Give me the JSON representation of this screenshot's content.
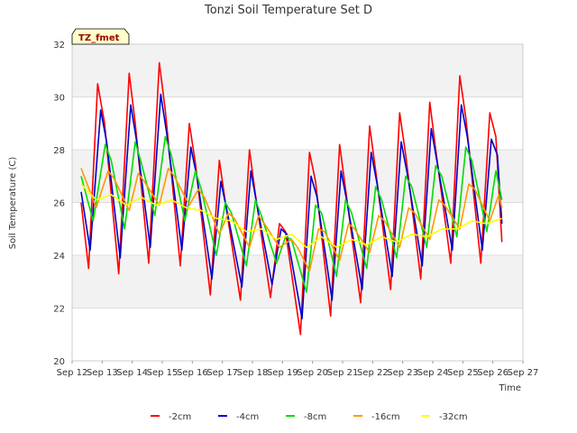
{
  "chart_data": {
    "type": "line",
    "title": "Tonzi Soil Temperature Set D",
    "xlabel": "Time",
    "ylabel": "Soil Temperature (C)",
    "site_label": "TZ_fmet",
    "xlim": [
      12,
      27
    ],
    "ylim": [
      20,
      32
    ],
    "x_ticks": [
      {
        "x": 12,
        "label": "Sep 12"
      },
      {
        "x": 13,
        "label": "Sep 13"
      },
      {
        "x": 14,
        "label": "Sep 14"
      },
      {
        "x": 15,
        "label": "Sep 15"
      },
      {
        "x": 16,
        "label": "Sep 16"
      },
      {
        "x": 17,
        "label": "Sep 17"
      },
      {
        "x": 18,
        "label": "Sep 18"
      },
      {
        "x": 19,
        "label": "Sep 19"
      },
      {
        "x": 20,
        "label": "Sep 20"
      },
      {
        "x": 21,
        "label": "Sep 21"
      },
      {
        "x": 22,
        "label": "Sep 22"
      },
      {
        "x": 23,
        "label": "Sep 23"
      },
      {
        "x": 24,
        "label": "Sep 24"
      },
      {
        "x": 25,
        "label": "Sep 25"
      },
      {
        "x": 26,
        "label": "Sep 26"
      },
      {
        "x": 27,
        "label": "Sep 27"
      }
    ],
    "y_ticks": [
      {
        "y": 20,
        "label": "20"
      },
      {
        "y": 22,
        "label": "22"
      },
      {
        "y": 24,
        "label": "24"
      },
      {
        "y": 26,
        "label": "26"
      },
      {
        "y": 28,
        "label": "28"
      },
      {
        "y": 30,
        "label": "30"
      },
      {
        "y": 32,
        "label": "32"
      }
    ],
    "grid": true,
    "legend_position": "bottom",
    "series": [
      {
        "name": "-2cm",
        "color": "#ff0000",
        "x": [
          12.3,
          12.55,
          12.85,
          13.08,
          13.55,
          13.9,
          14.1,
          14.55,
          14.9,
          15.1,
          15.6,
          15.9,
          16.1,
          16.6,
          16.9,
          17.1,
          17.6,
          17.9,
          18.1,
          18.6,
          18.9,
          19.1,
          19.6,
          19.9,
          20.1,
          20.6,
          20.9,
          21.1,
          21.6,
          21.9,
          22.1,
          22.6,
          22.9,
          23.1,
          23.6,
          23.9,
          24.1,
          24.6,
          24.9,
          25.1,
          25.6,
          25.9,
          26.1,
          26.3
        ],
        "y": [
          26.0,
          23.5,
          30.5,
          29.0,
          23.3,
          30.9,
          29.0,
          23.7,
          31.3,
          29.5,
          23.6,
          29.0,
          27.5,
          22.5,
          27.6,
          26.0,
          22.3,
          28.0,
          26.3,
          22.4,
          25.2,
          24.9,
          21.0,
          27.9,
          26.8,
          21.7,
          28.2,
          26.5,
          22.2,
          28.9,
          27.2,
          22.7,
          29.4,
          27.8,
          23.1,
          29.8,
          28.0,
          23.7,
          30.8,
          29.2,
          23.7,
          29.4,
          28.5,
          24.5
        ]
      },
      {
        "name": "-4cm",
        "color": "#0000cc",
        "x": [
          12.3,
          12.6,
          12.95,
          13.15,
          13.6,
          13.95,
          14.15,
          14.6,
          14.95,
          15.15,
          15.65,
          15.95,
          16.15,
          16.65,
          16.95,
          17.15,
          17.65,
          17.95,
          18.15,
          18.65,
          18.95,
          19.15,
          19.65,
          19.95,
          20.15,
          20.65,
          20.95,
          21.15,
          21.65,
          21.95,
          22.15,
          22.65,
          22.95,
          23.15,
          23.65,
          23.95,
          24.15,
          24.65,
          24.95,
          25.15,
          25.65,
          25.95,
          26.15,
          26.3
        ],
        "y": [
          26.4,
          24.2,
          29.5,
          28.3,
          23.9,
          29.7,
          28.3,
          24.3,
          30.1,
          28.6,
          24.2,
          28.1,
          27.0,
          23.1,
          26.8,
          25.7,
          22.8,
          27.2,
          25.9,
          22.9,
          25.0,
          24.8,
          21.6,
          27.0,
          26.2,
          22.3,
          27.2,
          26.0,
          22.7,
          27.9,
          26.7,
          23.2,
          28.3,
          27.1,
          23.6,
          28.8,
          27.5,
          24.2,
          29.7,
          28.5,
          24.2,
          28.4,
          27.8,
          25.2
        ]
      },
      {
        "name": "-8cm",
        "color": "#00dd00",
        "x": [
          12.3,
          12.7,
          13.1,
          13.3,
          13.75,
          14.1,
          14.3,
          14.75,
          15.1,
          15.3,
          15.75,
          16.1,
          16.3,
          16.8,
          17.1,
          17.3,
          17.8,
          18.1,
          18.3,
          18.8,
          19.1,
          19.3,
          19.8,
          20.1,
          20.3,
          20.8,
          21.1,
          21.3,
          21.8,
          22.1,
          22.3,
          22.8,
          23.1,
          23.3,
          23.8,
          24.1,
          24.3,
          24.8,
          25.1,
          25.3,
          25.8,
          26.1,
          26.3
        ],
        "y": [
          27.0,
          25.3,
          28.2,
          27.6,
          25.0,
          28.3,
          27.5,
          25.5,
          28.5,
          27.8,
          25.3,
          27.2,
          26.5,
          24.0,
          26.0,
          25.6,
          23.6,
          26.1,
          25.5,
          23.7,
          24.7,
          24.6,
          22.6,
          25.9,
          25.6,
          23.2,
          26.1,
          25.6,
          23.5,
          26.6,
          26.1,
          23.9,
          27.0,
          26.6,
          24.3,
          27.4,
          27.0,
          24.7,
          28.1,
          27.6,
          24.9,
          27.2,
          26.1
        ]
      },
      {
        "name": "-16cm",
        "color": "#ff9900",
        "x": [
          12.3,
          12.8,
          13.2,
          13.4,
          13.9,
          14.2,
          14.4,
          14.9,
          15.2,
          15.4,
          15.9,
          16.2,
          16.4,
          16.9,
          17.2,
          17.4,
          17.9,
          18.2,
          18.4,
          18.9,
          19.3,
          19.5,
          19.9,
          20.2,
          20.4,
          20.9,
          21.2,
          21.4,
          21.9,
          22.2,
          22.4,
          22.9,
          23.2,
          23.4,
          23.9,
          24.2,
          24.4,
          24.9,
          25.2,
          25.4,
          25.9,
          26.2,
          26.3
        ],
        "y": [
          27.3,
          25.8,
          27.2,
          26.9,
          25.7,
          27.1,
          26.8,
          25.9,
          27.3,
          27.0,
          25.9,
          26.5,
          26.2,
          24.8,
          25.6,
          25.4,
          24.3,
          25.5,
          25.2,
          24.3,
          24.6,
          24.3,
          23.4,
          25.0,
          24.9,
          23.8,
          25.2,
          25.0,
          24.1,
          25.5,
          25.3,
          24.3,
          25.8,
          25.6,
          24.6,
          26.1,
          25.9,
          25.0,
          26.7,
          26.5,
          25.3,
          26.3,
          25.8
        ]
      },
      {
        "name": "-32cm",
        "color": "#ffff00",
        "x": [
          12.3,
          12.8,
          13.3,
          13.8,
          14.3,
          14.8,
          15.3,
          15.8,
          16.3,
          16.8,
          17.3,
          17.8,
          18.3,
          18.8,
          19.3,
          19.8,
          20.3,
          20.8,
          21.3,
          21.8,
          22.3,
          22.8,
          23.3,
          23.8,
          24.3,
          24.8,
          25.3,
          25.8,
          26.3
        ],
        "y": [
          26.7,
          26.1,
          26.3,
          25.9,
          26.2,
          25.9,
          26.1,
          25.8,
          25.7,
          25.4,
          25.3,
          24.9,
          25.0,
          24.6,
          24.8,
          24.3,
          24.7,
          24.3,
          24.6,
          24.4,
          24.7,
          24.5,
          24.8,
          24.7,
          25.0,
          25.0,
          25.3,
          25.2,
          25.4
        ]
      }
    ]
  }
}
